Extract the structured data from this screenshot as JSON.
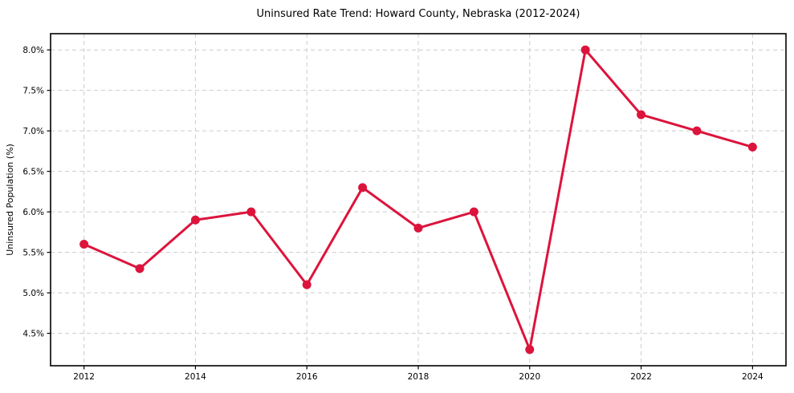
{
  "page": {
    "background_color": "#ffffff"
  },
  "chart_data": {
    "type": "line",
    "title": "Uninsured Rate Trend: Howard County, Nebraska (2012-2024)",
    "xlabel": "",
    "ylabel": "Uninsured Population (%)",
    "x": [
      2012,
      2013,
      2014,
      2015,
      2016,
      2017,
      2018,
      2019,
      2020,
      2021,
      2022,
      2023,
      2024
    ],
    "values": [
      5.6,
      5.3,
      5.9,
      6.0,
      5.1,
      6.3,
      5.8,
      6.0,
      4.3,
      8.0,
      7.2,
      7.0,
      6.8
    ],
    "xticks": {
      "values": [
        2012,
        2014,
        2016,
        2018,
        2020,
        2022,
        2024
      ],
      "labels": [
        "2012",
        "2014",
        "2016",
        "2018",
        "2020",
        "2022",
        "2024"
      ]
    },
    "yticks": {
      "values": [
        4.5,
        5.0,
        5.5,
        6.0,
        6.5,
        7.0,
        7.5,
        8.0
      ],
      "labels": [
        "4.5%",
        "5.0%",
        "5.5%",
        "6.0%",
        "6.5%",
        "7.0%",
        "7.5%",
        "8.0%"
      ]
    },
    "xlim": [
      2011.4,
      2024.6
    ],
    "ylim": [
      4.1,
      8.2
    ],
    "grid": true,
    "grid_style": "dashed",
    "legend": "none",
    "line_color": "#dc143c",
    "marker": "circle",
    "grid_color": "#cccccc",
    "axes_color": "#000000",
    "text_color": "#000000"
  }
}
